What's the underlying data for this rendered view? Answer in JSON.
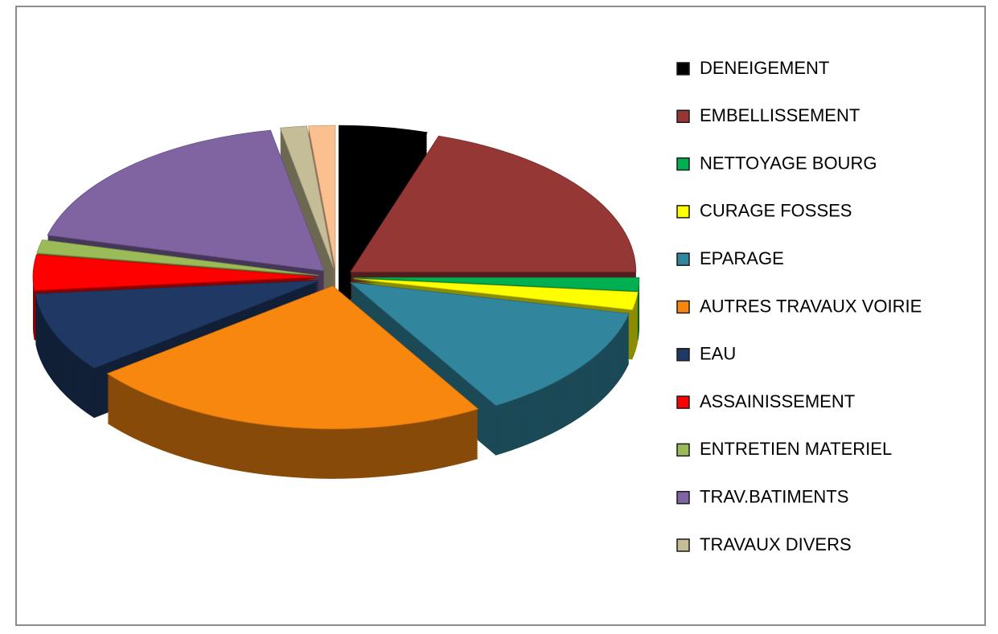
{
  "chart_data": {
    "type": "pie",
    "three_d": true,
    "exploded": true,
    "categories": [
      "DENEIGEMENT",
      "EMBELLISSEMENT",
      "NETTOYAGE  BOURG",
      "CURAGE FOSSES",
      "EPARAGE",
      "AUTRES TRAVAUX VOIRIE",
      "EAU",
      "ASSAINISSEMENT",
      "ENTRETIEN  MATERIEL",
      "TRAV.BATIMENTS",
      "TRAVAUX DIVERS",
      null
    ],
    "values": [
      5,
      20,
      1.5,
      2,
      13,
      23,
      9,
      4,
      1.5,
      18,
      1.5,
      1.5
    ],
    "colors": [
      "#000000",
      "#953735",
      "#00b050",
      "#ffff00",
      "#31859c",
      "#f7870f",
      "#1f3864",
      "#ff0000",
      "#9bbb59",
      "#8064a2",
      "#c4bd97",
      "#fac090"
    ],
    "legend": "right"
  }
}
